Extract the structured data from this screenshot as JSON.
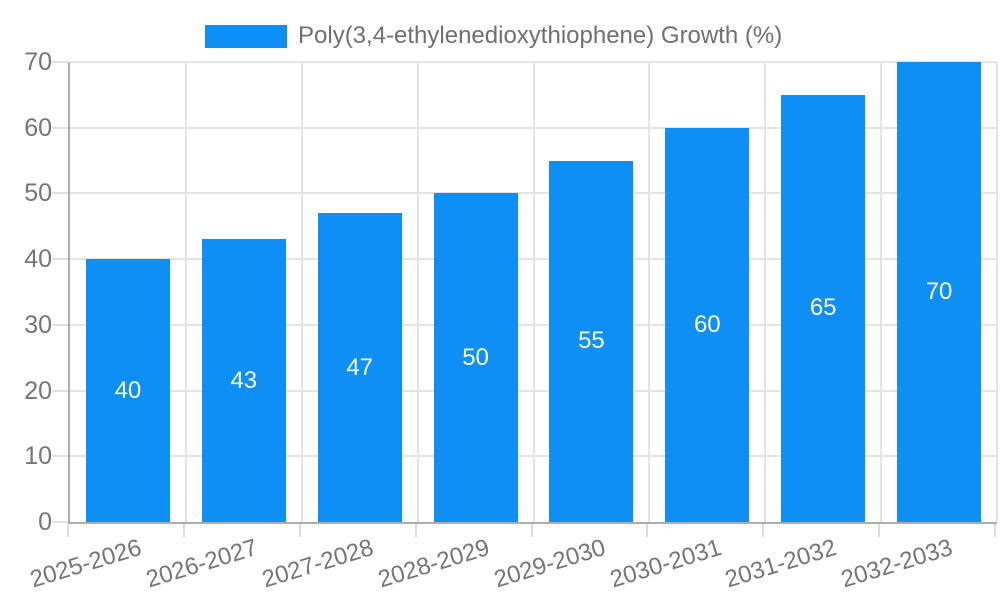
{
  "chart_data": {
    "type": "bar",
    "title": "Poly(3,4-ethylenedioxythiophene) Growth (%)",
    "categories": [
      "2025-2026",
      "2026-2027",
      "2027-2028",
      "2028-2029",
      "2029-2030",
      "2030-2031",
      "2031-2032",
      "2032-2033"
    ],
    "values": [
      40,
      43,
      47,
      50,
      55,
      60,
      65,
      70
    ],
    "xlabel": "",
    "ylabel": "",
    "ylim": [
      0,
      70
    ],
    "yticks": [
      0,
      10,
      20,
      30,
      40,
      50,
      60,
      70
    ],
    "grid": true,
    "legend_position": "top",
    "bar_color": "#0d8ff5",
    "value_label_color": "#ffffff",
    "grid_color": "#e4e4e4",
    "axis_color": "#adadad",
    "tick_text_color": "#757575"
  },
  "legend": {
    "label": "Poly(3,4-ethylenedioxythiophene) Growth (%)",
    "swatch_color": "#0d8ff5"
  }
}
